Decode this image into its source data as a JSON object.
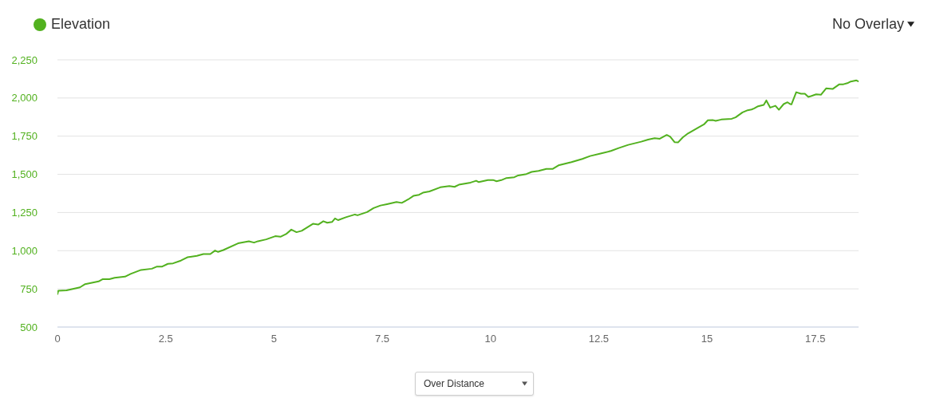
{
  "chart_data": {
    "type": "line",
    "x": [
      0,
      0.02,
      0.21,
      0.52,
      0.64,
      0.95,
      1.04,
      1.2,
      1.32,
      1.56,
      1.69,
      1.93,
      2.18,
      2.3,
      2.42,
      2.55,
      2.67,
      2.85,
      3.0,
      3.1,
      3.22,
      3.37,
      3.53,
      3.64,
      3.71,
      3.83,
      4.17,
      4.42,
      4.54,
      4.63,
      4.82,
      5.03,
      5.15,
      5.28,
      5.4,
      5.52,
      5.64,
      5.9,
      6.02,
      6.14,
      6.23,
      6.34,
      6.41,
      6.48,
      6.66,
      6.87,
      6.93,
      7.15,
      7.3,
      7.46,
      7.61,
      7.83,
      7.95,
      8.1,
      8.22,
      8.35,
      8.44,
      8.59,
      8.84,
      9.05,
      9.17,
      9.27,
      9.54,
      9.67,
      9.73,
      9.94,
      10.06,
      10.14,
      10.25,
      10.37,
      10.55,
      10.64,
      10.83,
      10.95,
      11.11,
      11.29,
      11.44,
      11.57,
      11.87,
      12.12,
      12.3,
      12.56,
      12.78,
      12.96,
      13.18,
      13.48,
      13.64,
      13.79,
      13.91,
      14.07,
      14.15,
      14.25,
      14.33,
      14.44,
      14.56,
      14.8,
      14.93,
      15.02,
      15.14,
      15.2,
      15.33,
      15.57,
      15.66,
      15.82,
      15.94,
      16.03,
      16.09,
      16.18,
      16.31,
      16.37,
      16.46,
      16.58,
      16.66,
      16.77,
      16.86,
      16.92,
      16.95,
      17.06,
      17.17,
      17.26,
      17.34,
      17.44,
      17.52,
      17.63,
      17.75,
      17.9,
      18.05,
      18.15,
      18.24,
      18.32,
      18.45,
      18.5
    ],
    "series": [
      {
        "name": "Elevation",
        "color": "#52b11f",
        "values": [
          715,
          738,
          740,
          760,
          781,
          799,
          813,
          813,
          823,
          830,
          848,
          874,
          882,
          896,
          896,
          914,
          917,
          935,
          957,
          961,
          966,
          978,
          978,
          1001,
          992,
          1004,
          1048,
          1062,
          1053,
          1062,
          1074,
          1095,
          1091,
          1109,
          1138,
          1121,
          1130,
          1176,
          1171,
          1193,
          1183,
          1188,
          1211,
          1200,
          1219,
          1237,
          1232,
          1253,
          1279,
          1296,
          1305,
          1319,
          1313,
          1336,
          1359,
          1366,
          1380,
          1388,
          1415,
          1423,
          1418,
          1432,
          1446,
          1458,
          1449,
          1463,
          1463,
          1455,
          1462,
          1476,
          1481,
          1493,
          1502,
          1516,
          1523,
          1536,
          1536,
          1559,
          1580,
          1601,
          1620,
          1638,
          1653,
          1672,
          1693,
          1714,
          1728,
          1737,
          1733,
          1758,
          1746,
          1711,
          1709,
          1742,
          1768,
          1807,
          1827,
          1854,
          1855,
          1850,
          1859,
          1864,
          1873,
          1906,
          1920,
          1925,
          1932,
          1946,
          1955,
          1984,
          1937,
          1949,
          1923,
          1960,
          1972,
          1960,
          1958,
          2038,
          2028,
          2028,
          2007,
          2016,
          2024,
          2021,
          2063,
          2059,
          2089,
          2090,
          2097,
          2108,
          2115,
          2109
        ]
      }
    ],
    "xlim": [
      0,
      18.5
    ],
    "xticks": [
      0,
      2.5,
      5,
      7.5,
      10,
      12.5,
      15,
      17.5
    ],
    "ylim": [
      500,
      2250
    ],
    "yticks": [
      500,
      750,
      {
        "value": 1000,
        "label": "1,000"
      },
      {
        "value": 1250,
        "label": "1,250"
      },
      {
        "value": 1500,
        "label": "1,500"
      },
      {
        "value": 1750,
        "label": "1,750"
      },
      {
        "value": 2000,
        "label": "2,000"
      },
      {
        "value": 2250,
        "label": "2,250"
      }
    ],
    "grid": "y",
    "legend": "top left",
    "marker": "none",
    "line_style": "solid",
    "annotations": [
      "No Overlay",
      "Over Distance"
    ]
  }
}
